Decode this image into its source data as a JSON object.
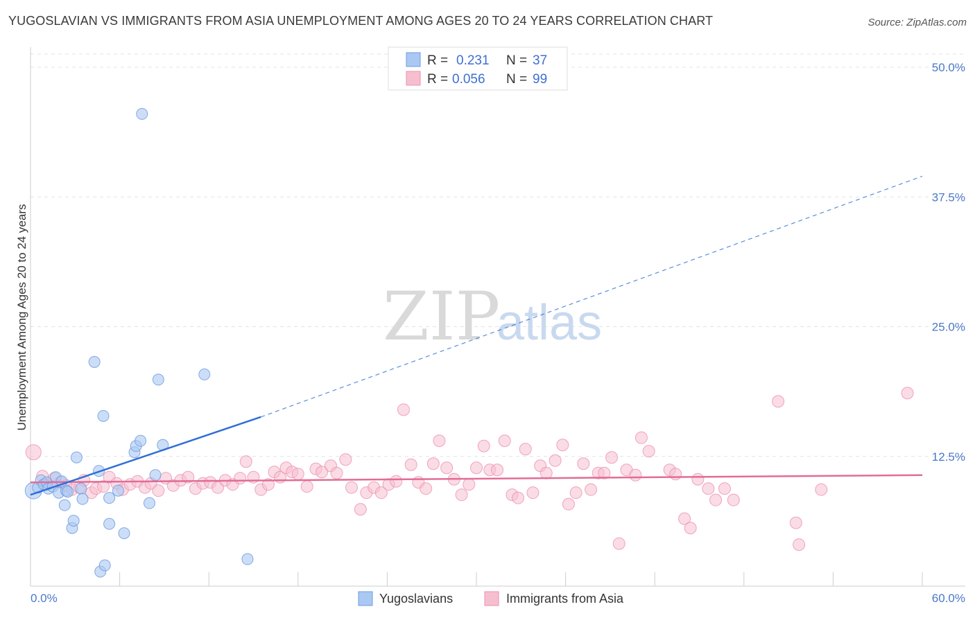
{
  "title": "YUGOSLAVIAN VS IMMIGRANTS FROM ASIA UNEMPLOYMENT AMONG AGES 20 TO 24 YEARS CORRELATION CHART",
  "source": "Source: ZipAtlas.com",
  "watermark": {
    "zip": "ZIP",
    "atlas": "atlas"
  },
  "colors": {
    "blue_fill": "#aac8f2",
    "blue_stroke": "#6f9be0",
    "blue_line": "#2f6fd6",
    "pink_fill": "#f6bfd0",
    "pink_stroke": "#ee8fb0",
    "pink_line": "#e26c96",
    "grid": "#e3e3e3",
    "axis_text": "#4a78c8"
  },
  "legend_top": {
    "rows": [
      {
        "r_label": "R =",
        "r_value": "0.231",
        "n_label": "N =",
        "n_value": "37",
        "series": "blue"
      },
      {
        "r_label": "R =",
        "r_value": "0.056",
        "n_label": "N =",
        "n_value": "99",
        "series": "pink"
      }
    ]
  },
  "legend_bottom": [
    {
      "label": "Yugoslavians",
      "series": "blue"
    },
    {
      "label": "Immigrants from Asia",
      "series": "pink"
    }
  ],
  "chart_data": {
    "type": "scatter",
    "title": "YUGOSLAVIAN VS IMMIGRANTS FROM ASIA UNEMPLOYMENT AMONG AGES 20 TO 24 YEARS CORRELATION CHART",
    "xlabel": "",
    "ylabel": "Unemployment Among Ages 20 to 24 years",
    "xlim": [
      0,
      60
    ],
    "ylim": [
      0,
      50
    ],
    "x_tick_labels": [
      "0.0%",
      "60.0%"
    ],
    "y_ticks": [
      12.5,
      25.0,
      37.5,
      50.0
    ],
    "y_tick_labels": [
      "12.5%",
      "25.0%",
      "37.5%",
      "50.0%"
    ],
    "grid": true,
    "legend_position": "top-center",
    "series": [
      {
        "name": "Yugoslavians",
        "color": "#aac8f2",
        "R": 0.231,
        "N": 37,
        "trend": {
          "x_start": 0,
          "y_start": 8.8,
          "x_solid_end": 15.5,
          "y_solid_end": 16.3,
          "x_end": 60,
          "y_end": 39.5
        },
        "points": [
          [
            0.2,
            9.2
          ],
          [
            0.5,
            9.5
          ],
          [
            0.7,
            10.2
          ],
          [
            0.9,
            9.8
          ],
          [
            1.1,
            10.0
          ],
          [
            1.2,
            9.4
          ],
          [
            1.5,
            9.6
          ],
          [
            1.7,
            10.5
          ],
          [
            1.9,
            9.0
          ],
          [
            2.1,
            10.1
          ],
          [
            2.3,
            7.8
          ],
          [
            2.4,
            9.2
          ],
          [
            2.5,
            9.1
          ],
          [
            2.8,
            5.6
          ],
          [
            2.9,
            6.3
          ],
          [
            3.1,
            12.4
          ],
          [
            3.4,
            9.4
          ],
          [
            3.5,
            8.4
          ],
          [
            4.3,
            21.6
          ],
          [
            4.6,
            11.1
          ],
          [
            4.7,
            1.4
          ],
          [
            4.9,
            16.4
          ],
          [
            5.0,
            2.0
          ],
          [
            5.3,
            8.5
          ],
          [
            5.9,
            9.2
          ],
          [
            6.3,
            5.1
          ],
          [
            7.0,
            12.9
          ],
          [
            7.1,
            13.5
          ],
          [
            7.4,
            14.0
          ],
          [
            7.5,
            45.5
          ],
          [
            8.0,
            8.0
          ],
          [
            8.4,
            10.7
          ],
          [
            8.6,
            19.9
          ],
          [
            8.9,
            13.6
          ],
          [
            11.7,
            20.4
          ],
          [
            14.6,
            2.6
          ],
          [
            5.3,
            6.0
          ]
        ]
      },
      {
        "name": "Immigrants from Asia",
        "color": "#f6bfd0",
        "R": 0.056,
        "N": 99,
        "trend": {
          "x_start": 0,
          "y_start": 10.0,
          "x_end": 60,
          "y_end": 10.7
        },
        "points": [
          [
            0.2,
            12.9
          ],
          [
            0.8,
            10.6
          ],
          [
            1.1,
            9.8
          ],
          [
            1.6,
            10.4
          ],
          [
            2.0,
            10.0
          ],
          [
            2.4,
            9.7
          ],
          [
            2.8,
            9.3
          ],
          [
            3.3,
            9.5
          ],
          [
            3.6,
            10.2
          ],
          [
            4.1,
            9.0
          ],
          [
            4.4,
            9.4
          ],
          [
            4.9,
            9.6
          ],
          [
            5.3,
            10.5
          ],
          [
            5.8,
            9.9
          ],
          [
            6.2,
            9.3
          ],
          [
            6.7,
            9.8
          ],
          [
            7.2,
            10.1
          ],
          [
            7.7,
            9.5
          ],
          [
            8.1,
            9.9
          ],
          [
            8.6,
            9.2
          ],
          [
            9.1,
            10.4
          ],
          [
            9.6,
            9.7
          ],
          [
            10.1,
            10.2
          ],
          [
            10.6,
            10.5
          ],
          [
            11.1,
            9.4
          ],
          [
            11.6,
            9.9
          ],
          [
            12.1,
            10.0
          ],
          [
            12.6,
            9.5
          ],
          [
            13.1,
            10.2
          ],
          [
            13.6,
            9.8
          ],
          [
            14.1,
            10.4
          ],
          [
            14.5,
            12.0
          ],
          [
            15.0,
            10.5
          ],
          [
            15.5,
            9.3
          ],
          [
            16.0,
            9.8
          ],
          [
            16.4,
            11.0
          ],
          [
            16.8,
            10.5
          ],
          [
            17.2,
            11.4
          ],
          [
            17.6,
            11.0
          ],
          [
            18.0,
            10.8
          ],
          [
            18.6,
            9.6
          ],
          [
            19.2,
            11.3
          ],
          [
            19.6,
            11.0
          ],
          [
            20.2,
            11.6
          ],
          [
            20.6,
            10.9
          ],
          [
            21.2,
            12.2
          ],
          [
            21.6,
            9.5
          ],
          [
            22.2,
            7.4
          ],
          [
            22.6,
            9.0
          ],
          [
            23.1,
            9.5
          ],
          [
            23.6,
            9.0
          ],
          [
            24.1,
            9.8
          ],
          [
            24.6,
            10.1
          ],
          [
            25.1,
            17.0
          ],
          [
            25.6,
            11.7
          ],
          [
            26.1,
            10.0
          ],
          [
            26.6,
            9.4
          ],
          [
            27.1,
            11.8
          ],
          [
            27.5,
            14.0
          ],
          [
            28.0,
            11.4
          ],
          [
            28.5,
            10.3
          ],
          [
            29.0,
            8.8
          ],
          [
            29.5,
            9.8
          ],
          [
            30.0,
            11.4
          ],
          [
            30.5,
            13.5
          ],
          [
            30.9,
            11.2
          ],
          [
            31.4,
            11.2
          ],
          [
            31.9,
            14.0
          ],
          [
            32.4,
            8.8
          ],
          [
            32.8,
            8.5
          ],
          [
            33.3,
            13.2
          ],
          [
            33.8,
            9.0
          ],
          [
            34.3,
            11.6
          ],
          [
            34.7,
            10.9
          ],
          [
            35.3,
            12.1
          ],
          [
            35.8,
            13.6
          ],
          [
            36.2,
            7.9
          ],
          [
            36.7,
            9.0
          ],
          [
            37.2,
            11.8
          ],
          [
            37.7,
            9.3
          ],
          [
            38.2,
            10.9
          ],
          [
            38.6,
            10.9
          ],
          [
            39.1,
            12.4
          ],
          [
            39.6,
            4.1
          ],
          [
            40.1,
            11.2
          ],
          [
            40.7,
            10.7
          ],
          [
            41.1,
            14.3
          ],
          [
            41.6,
            13.0
          ],
          [
            43.0,
            11.2
          ],
          [
            43.4,
            10.8
          ],
          [
            44.0,
            6.5
          ],
          [
            44.4,
            5.6
          ],
          [
            44.9,
            10.3
          ],
          [
            45.6,
            9.4
          ],
          [
            46.1,
            8.3
          ],
          [
            46.7,
            9.4
          ],
          [
            47.3,
            8.3
          ],
          [
            50.3,
            17.8
          ],
          [
            51.5,
            6.1
          ],
          [
            51.7,
            4.0
          ],
          [
            53.2,
            9.3
          ],
          [
            59.0,
            18.6
          ]
        ]
      }
    ]
  }
}
